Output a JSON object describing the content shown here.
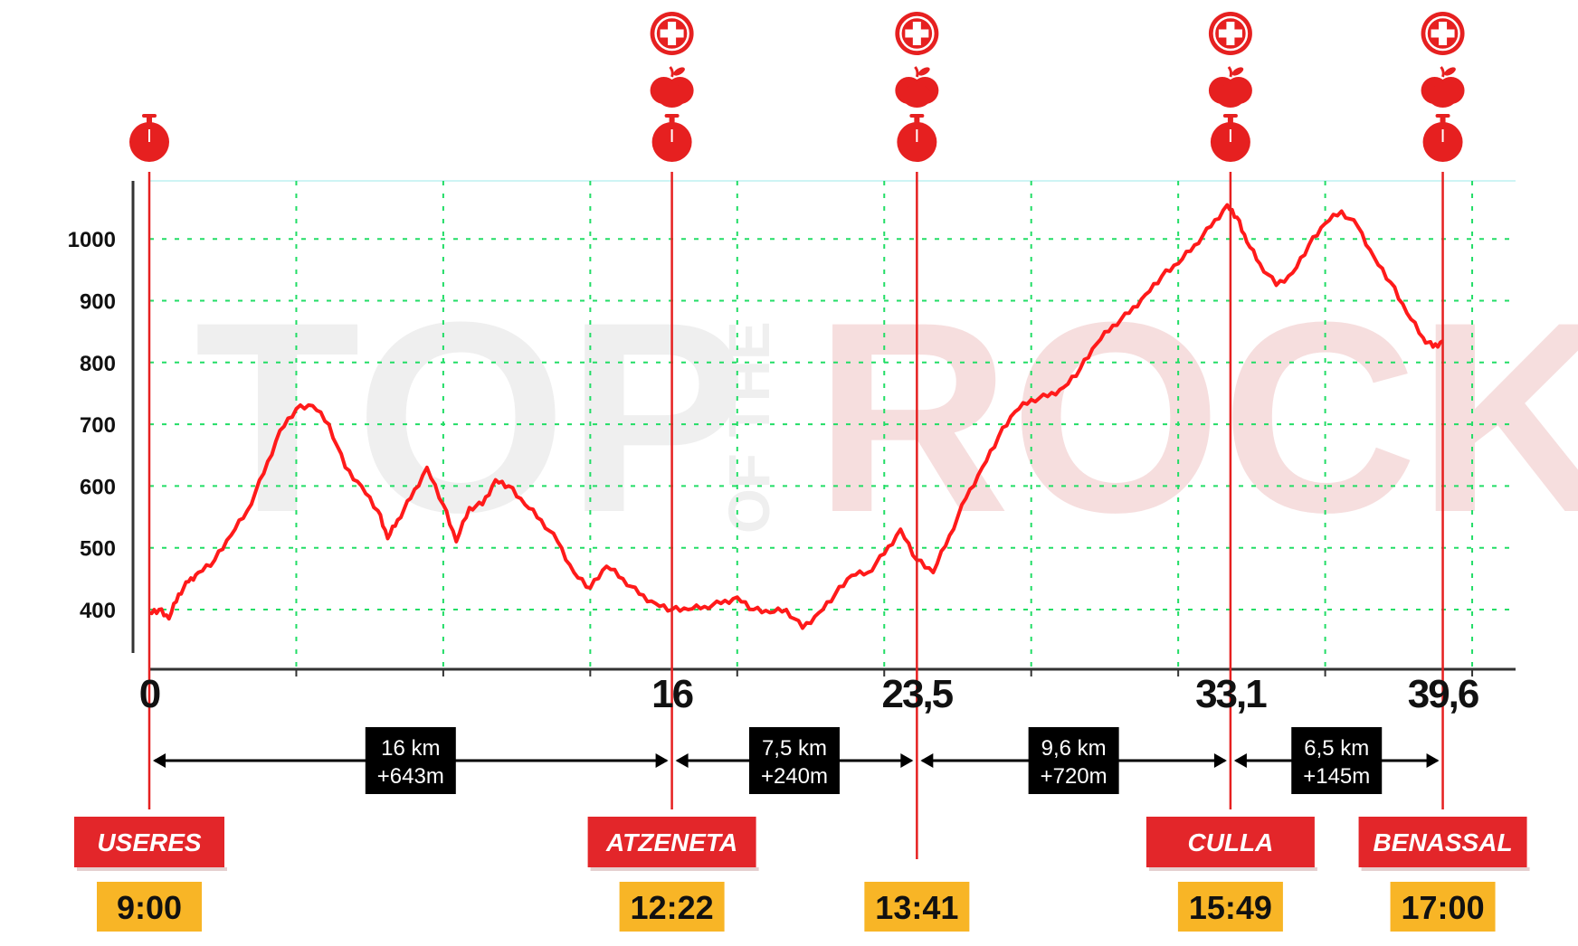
{
  "watermark": {
    "left": "TOP",
    "middle": "OF THE",
    "right": "ROCK"
  },
  "colors": {
    "profile": "#ff1a1a",
    "grid": "#22dd66",
    "marker": "#e62020",
    "town_box": "#e3262a",
    "time_box": "#f8b526",
    "segment_box": "#000000"
  },
  "chart_data": {
    "type": "line",
    "title": "",
    "xlabel": "",
    "ylabel": "",
    "ylim": [
      300,
      1090
    ],
    "xlim": [
      0,
      40.8
    ],
    "yticks": [
      "400",
      "500",
      "600",
      "700",
      "800",
      "900",
      "1000"
    ],
    "grid": true,
    "series": [
      {
        "x": [
          0,
          0.3,
          0.6,
          0.9,
          1.2,
          1.5,
          2.0,
          2.5,
          3.0,
          3.5,
          4.0,
          4.5,
          5.0,
          5.5,
          6.0,
          6.5,
          7.0,
          7.3,
          7.6,
          8.0,
          8.5,
          9.0,
          9.4,
          9.8,
          10.2,
          10.6,
          11.0,
          11.5,
          12.0,
          12.5,
          13.0,
          13.5,
          14.0,
          14.5,
          15.0,
          15.5,
          16.0,
          16.5,
          17.0,
          17.5,
          18.0,
          18.5,
          19.0,
          19.5,
          20.0,
          20.5,
          21.0,
          21.5,
          22.0,
          22.5,
          23.0,
          23.5,
          24.0,
          24.5,
          25.0,
          25.5,
          26.0,
          26.5,
          27.0,
          27.5,
          28.0,
          28.5,
          29.0,
          29.5,
          30.0,
          30.5,
          31.0,
          31.5,
          32.0,
          32.5,
          33.0,
          33.3,
          33.6,
          34.0,
          34.5,
          35.0,
          35.5,
          36.0,
          36.5,
          37.0,
          37.5,
          38.0,
          38.5,
          39.0,
          39.3,
          39.6
        ],
        "values": [
          395,
          400,
          385,
          425,
          445,
          460,
          480,
          520,
          560,
          620,
          690,
          725,
          730,
          700,
          630,
          600,
          560,
          515,
          545,
          580,
          630,
          570,
          510,
          565,
          570,
          610,
          600,
          570,
          545,
          510,
          460,
          435,
          470,
          450,
          425,
          410,
          400,
          400,
          405,
          410,
          420,
          400,
          395,
          400,
          370,
          395,
          425,
          455,
          460,
          490,
          530,
          480,
          460,
          520,
          580,
          630,
          680,
          720,
          740,
          745,
          760,
          790,
          830,
          860,
          880,
          910,
          940,
          960,
          990,
          1020,
          1055,
          1035,
          995,
          960,
          925,
          945,
          990,
          1025,
          1045,
          1020,
          970,
          930,
          880,
          840,
          825,
          835
        ]
      }
    ],
    "xticks": [
      "0",
      "16",
      "23,5",
      "33,1",
      "39,6"
    ],
    "checkpoints": [
      {
        "km": 0,
        "label": "0",
        "town": "USERES",
        "time": "9:00",
        "icons": [
          "stopwatch-icon"
        ]
      },
      {
        "km": 16,
        "label": "16",
        "town": "ATZENETA",
        "time": "12:22",
        "icons": [
          "first-aid-icon",
          "apple-icon",
          "stopwatch-icon"
        ]
      },
      {
        "km": 23.5,
        "label": "23,5",
        "town": "",
        "time": "13:41",
        "icons": [
          "first-aid-icon",
          "apple-icon",
          "stopwatch-icon"
        ]
      },
      {
        "km": 33.1,
        "label": "33,1",
        "town": "CULLA",
        "time": "15:49",
        "icons": [
          "first-aid-icon",
          "apple-icon",
          "stopwatch-icon"
        ]
      },
      {
        "km": 39.6,
        "label": "39,6",
        "town": "BENASSAL",
        "time": "17:00",
        "icons": [
          "first-aid-icon",
          "apple-icon",
          "stopwatch-icon"
        ]
      }
    ],
    "segments": [
      {
        "distance": "16 km",
        "gain": "+643m"
      },
      {
        "distance": "7,5 km",
        "gain": "+240m"
      },
      {
        "distance": "9,6 km",
        "gain": "+720m"
      },
      {
        "distance": "6,5 km",
        "gain": "+145m"
      }
    ]
  }
}
